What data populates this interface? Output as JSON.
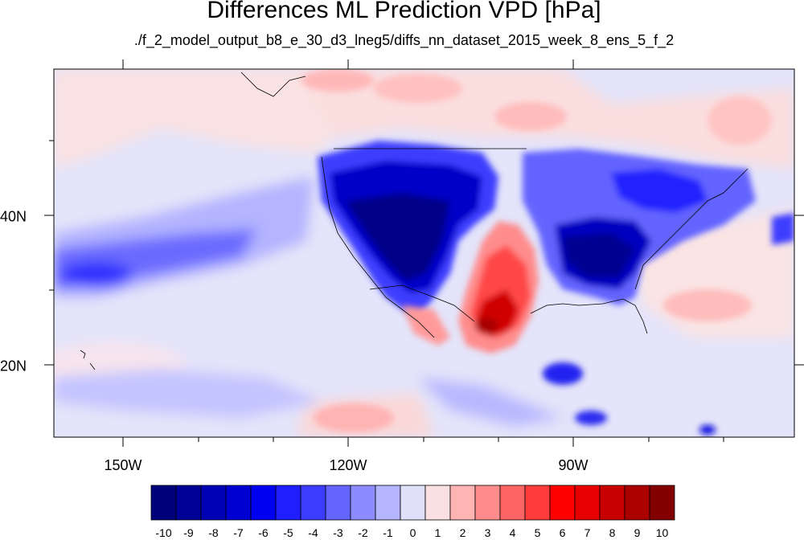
{
  "title": "Differences ML Prediction VPD [hPa]",
  "subtitle": "./f_2_model_output_b8_e_30_d3_lneg5/diffs_nn_dataset_2015_week_8_ens_5_f_2",
  "x_ticks": [
    "150W",
    "120W",
    "90W"
  ],
  "y_ticks": [
    "40N",
    "20N"
  ],
  "colorbar": {
    "labels": [
      "-10",
      "-9",
      "-8",
      "-7",
      "-6",
      "-5",
      "-4",
      "-3",
      "-2",
      "-1",
      "0",
      "1",
      "2",
      "3",
      "4",
      "5",
      "6",
      "7",
      "8",
      "9",
      "10"
    ],
    "colors": [
      "#00007a",
      "#000096",
      "#0000b4",
      "#0000d2",
      "#0000f0",
      "#1e1eff",
      "#3c3cff",
      "#6464ff",
      "#8c8cff",
      "#b4b4ff",
      "#e0e0fa",
      "#fae0e0",
      "#ffb4b4",
      "#ff8c8c",
      "#ff6464",
      "#ff3c3c",
      "#ff0000",
      "#e60000",
      "#c80000",
      "#aa0000",
      "#820000"
    ]
  }
}
